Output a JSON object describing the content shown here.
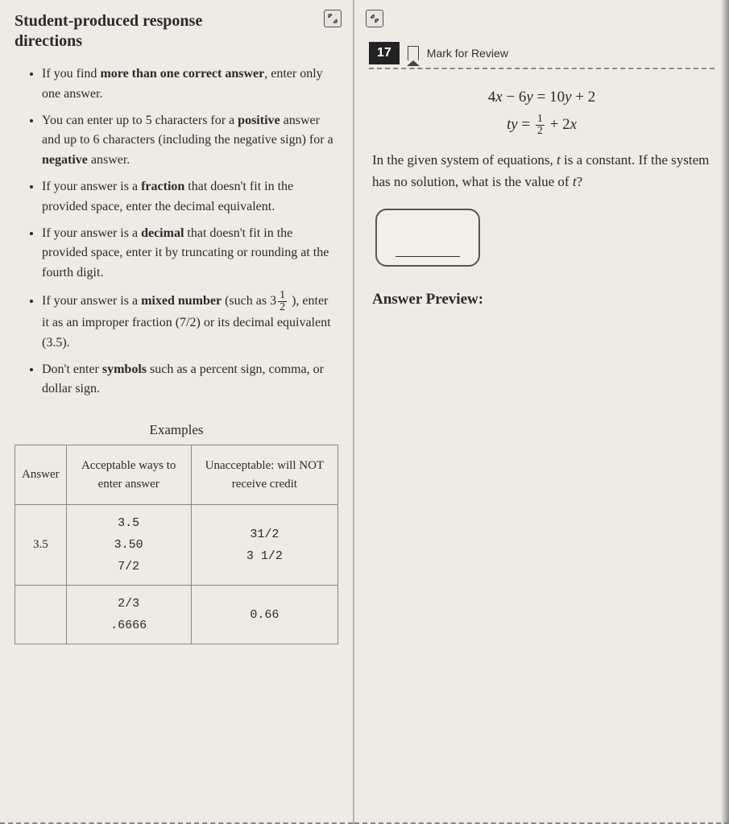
{
  "left": {
    "title": "Student-produced response directions",
    "bullets": [
      "If you find <b>more than one correct answer</b>, enter only one answer.",
      "You can enter up to 5 characters for a <b>positive</b> answer and up to 6 characters (including the negative sign) for a <b>negative</b> answer.",
      "If your answer is a <b>fraction</b> that doesn't fit in the provided space, enter the decimal equivalent.",
      "If your answer is a <b>decimal</b> that doesn't fit in the provided space, enter it by truncating or rounding at the fourth digit.",
      "If your answer is a <b>mixed number</b> (such as 3<span class=\"frac\"><span class=\"n\">1</span><span class=\"d\">2</span></span> ), enter it as an improper fraction (7/2) or its decimal equivalent (3.5).",
      "Don't enter <b>symbols</b> such as a percent sign, comma, or dollar sign."
    ],
    "examples_label": "Examples",
    "table": {
      "headers": [
        "Answer",
        "Acceptable ways to enter answer",
        "Unacceptable: will NOT receive credit"
      ],
      "rows": [
        {
          "answer": "3.5",
          "acceptable": [
            "3.5",
            "3.50",
            "7/2"
          ],
          "unacceptable": [
            "31/2",
            "3 1/2"
          ]
        },
        {
          "answer": "",
          "acceptable": [
            "2/3",
            ".6666"
          ],
          "unacceptable": [
            "0.66"
          ]
        }
      ]
    }
  },
  "right": {
    "question_number": "17",
    "mark_label": "Mark for Review",
    "eq1": "4<span class=\"ital\">x</span> − 6<span class=\"ital\">y</span> = 10<span class=\"ital\">y</span> + 2",
    "eq2": "<span class=\"ital\">ty</span> = <span class=\"frac\"><span class=\"n\">1</span><span class=\"d\">2</span></span> + 2<span class=\"ital\">x</span>",
    "prompt": "In the given system of equations, <span class=\"ital\">t</span> is a constant. If the system has no solution, what is the value of <span class=\"ital\">t</span>?",
    "preview_label": "Answer Preview:"
  }
}
